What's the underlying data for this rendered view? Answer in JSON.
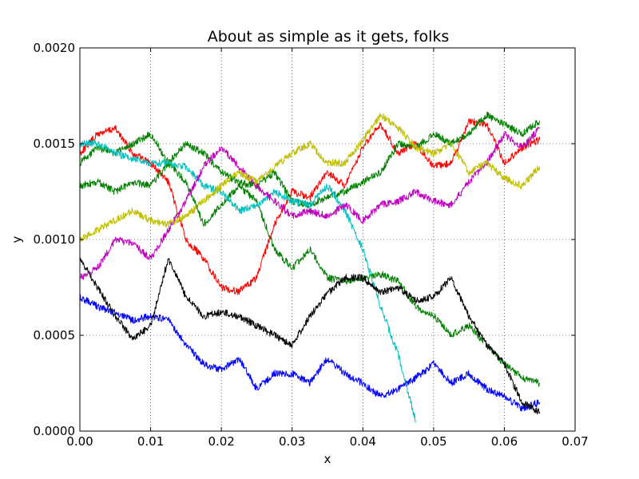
{
  "chart_data": {
    "type": "line",
    "title": "About as simple as it gets, folks",
    "xlabel": "x",
    "ylabel": "y",
    "xlim": [
      0.0,
      0.07
    ],
    "ylim": [
      0.0,
      0.002
    ],
    "grid": true,
    "x_ticks": [
      "0.00",
      "0.01",
      "0.02",
      "0.03",
      "0.04",
      "0.05",
      "0.06",
      "0.07"
    ],
    "y_ticks": [
      "0.0000",
      "0.0005",
      "0.0010",
      "0.0015",
      "0.0020"
    ],
    "series": [
      {
        "color": "#ff0000",
        "x": [
          0.0,
          0.0025,
          0.005,
          0.0075,
          0.01,
          0.0125,
          0.015,
          0.0175,
          0.02,
          0.0225,
          0.025,
          0.0275,
          0.03,
          0.0325,
          0.035,
          0.0375,
          0.04,
          0.0425,
          0.045,
          0.0475,
          0.05,
          0.0525,
          0.055,
          0.0575,
          0.06,
          0.0625,
          0.065
        ],
        "y": [
          0.00145,
          0.00155,
          0.00158,
          0.00145,
          0.0014,
          0.0013,
          0.001,
          0.0009,
          0.00075,
          0.00073,
          0.0008,
          0.00108,
          0.00125,
          0.00122,
          0.00135,
          0.00128,
          0.00148,
          0.0016,
          0.00145,
          0.0015,
          0.00138,
          0.0014,
          0.00162,
          0.0016,
          0.0014,
          0.00148,
          0.00152
        ]
      },
      {
        "color": "#008000",
        "x": [
          0.0,
          0.0025,
          0.005,
          0.0075,
          0.01,
          0.0125,
          0.015,
          0.0175,
          0.02,
          0.0225,
          0.025,
          0.0275,
          0.03,
          0.0325,
          0.035,
          0.0375,
          0.04,
          0.0425,
          0.045,
          0.0475,
          0.05,
          0.0525,
          0.055,
          0.0575,
          0.06,
          0.0625,
          0.065
        ],
        "y": [
          0.0014,
          0.00148,
          0.00145,
          0.0015,
          0.00155,
          0.0014,
          0.0013,
          0.00108,
          0.00118,
          0.00128,
          0.0012,
          0.00095,
          0.00085,
          0.00095,
          0.0008,
          0.00078,
          0.0008,
          0.00082,
          0.00078,
          0.00065,
          0.0006,
          0.0005,
          0.00055,
          0.00045,
          0.00035,
          0.00028,
          0.00025
        ]
      },
      {
        "color": "#0000ff",
        "x": [
          0.0,
          0.0025,
          0.005,
          0.0075,
          0.01,
          0.0125,
          0.015,
          0.0175,
          0.02,
          0.0225,
          0.025,
          0.0275,
          0.03,
          0.0325,
          0.035,
          0.0375,
          0.04,
          0.0425,
          0.045,
          0.0475,
          0.05,
          0.0525,
          0.055,
          0.0575,
          0.06,
          0.0625,
          0.065
        ],
        "y": [
          0.0007,
          0.00065,
          0.00062,
          0.00058,
          0.0006,
          0.00058,
          0.00045,
          0.00035,
          0.00032,
          0.00038,
          0.00022,
          0.0003,
          0.0003,
          0.00025,
          0.00038,
          0.0003,
          0.00025,
          0.00018,
          0.00022,
          0.00028,
          0.00035,
          0.00025,
          0.0003,
          0.00022,
          0.00018,
          0.00012,
          0.00015
        ]
      },
      {
        "color": "#008000",
        "x": [
          0.0,
          0.0025,
          0.005,
          0.0075,
          0.01,
          0.0125,
          0.015,
          0.0175,
          0.02,
          0.0225,
          0.025,
          0.0275,
          0.03,
          0.0325,
          0.035,
          0.0375,
          0.04,
          0.0425,
          0.045,
          0.0475,
          0.05,
          0.0525,
          0.055,
          0.0575,
          0.06,
          0.0625,
          0.065
        ],
        "y": [
          0.00128,
          0.0013,
          0.00125,
          0.0013,
          0.00128,
          0.0014,
          0.0015,
          0.00145,
          0.00135,
          0.0013,
          0.00128,
          0.00135,
          0.0012,
          0.00118,
          0.00122,
          0.00125,
          0.0013,
          0.00135,
          0.0015,
          0.00148,
          0.00155,
          0.0015,
          0.00155,
          0.00165,
          0.0016,
          0.00155,
          0.00162
        ]
      },
      {
        "color": "#00bfbf",
        "x": [
          0.0,
          0.0025,
          0.005,
          0.0075,
          0.01,
          0.0125,
          0.015,
          0.0175,
          0.02,
          0.0225,
          0.025,
          0.0275,
          0.03,
          0.0325,
          0.035,
          0.0375,
          0.04,
          0.0425,
          0.045,
          0.0475
        ],
        "y": [
          0.0015,
          0.0015,
          0.00145,
          0.00142,
          0.0014,
          0.0014,
          0.00138,
          0.00128,
          0.00125,
          0.00115,
          0.00118,
          0.00125,
          0.0012,
          0.00118,
          0.00128,
          0.00115,
          0.00095,
          0.00065,
          0.0004,
          5e-05
        ]
      },
      {
        "color": "#bf00bf",
        "x": [
          0.0,
          0.0025,
          0.005,
          0.0075,
          0.01,
          0.0125,
          0.015,
          0.0175,
          0.02,
          0.0225,
          0.025,
          0.0275,
          0.03,
          0.0325,
          0.035,
          0.0375,
          0.04,
          0.0425,
          0.045,
          0.0475,
          0.05,
          0.0525,
          0.055,
          0.0575,
          0.06,
          0.0625,
          0.065
        ],
        "y": [
          0.0008,
          0.00085,
          0.001,
          0.00098,
          0.0009,
          0.00105,
          0.0012,
          0.00138,
          0.00148,
          0.00138,
          0.00128,
          0.0012,
          0.00112,
          0.00115,
          0.00112,
          0.00118,
          0.0011,
          0.00118,
          0.0012,
          0.00125,
          0.0012,
          0.00118,
          0.0013,
          0.0014,
          0.00155,
          0.00148,
          0.00158
        ]
      },
      {
        "color": "#bfbf00",
        "x": [
          0.0,
          0.0025,
          0.005,
          0.0075,
          0.01,
          0.0125,
          0.015,
          0.0175,
          0.02,
          0.0225,
          0.025,
          0.0275,
          0.03,
          0.0325,
          0.035,
          0.0375,
          0.04,
          0.0425,
          0.045,
          0.0475,
          0.05,
          0.0525,
          0.055,
          0.0575,
          0.06,
          0.0625,
          0.065
        ],
        "y": [
          0.001,
          0.00105,
          0.0011,
          0.00115,
          0.0011,
          0.00108,
          0.00112,
          0.0012,
          0.00128,
          0.00135,
          0.0013,
          0.00138,
          0.00145,
          0.0015,
          0.0014,
          0.0014,
          0.00152,
          0.00165,
          0.00158,
          0.00148,
          0.00145,
          0.0015,
          0.00135,
          0.0014,
          0.00132,
          0.00128,
          0.00138
        ]
      },
      {
        "color": "#000000",
        "x": [
          0.0,
          0.0025,
          0.005,
          0.0075,
          0.01,
          0.0125,
          0.015,
          0.0175,
          0.02,
          0.0225,
          0.025,
          0.0275,
          0.03,
          0.0325,
          0.035,
          0.0375,
          0.04,
          0.0425,
          0.045,
          0.0475,
          0.05,
          0.0525,
          0.055,
          0.0575,
          0.06,
          0.0625,
          0.065
        ],
        "y": [
          0.0009,
          0.00075,
          0.0006,
          0.00048,
          0.00055,
          0.0009,
          0.0007,
          0.0006,
          0.00062,
          0.0006,
          0.00055,
          0.0005,
          0.00045,
          0.0006,
          0.00072,
          0.0008,
          0.0008,
          0.00072,
          0.00075,
          0.00068,
          0.0007,
          0.0008,
          0.0006,
          0.00045,
          0.00035,
          0.00015,
          0.0001
        ]
      }
    ]
  }
}
